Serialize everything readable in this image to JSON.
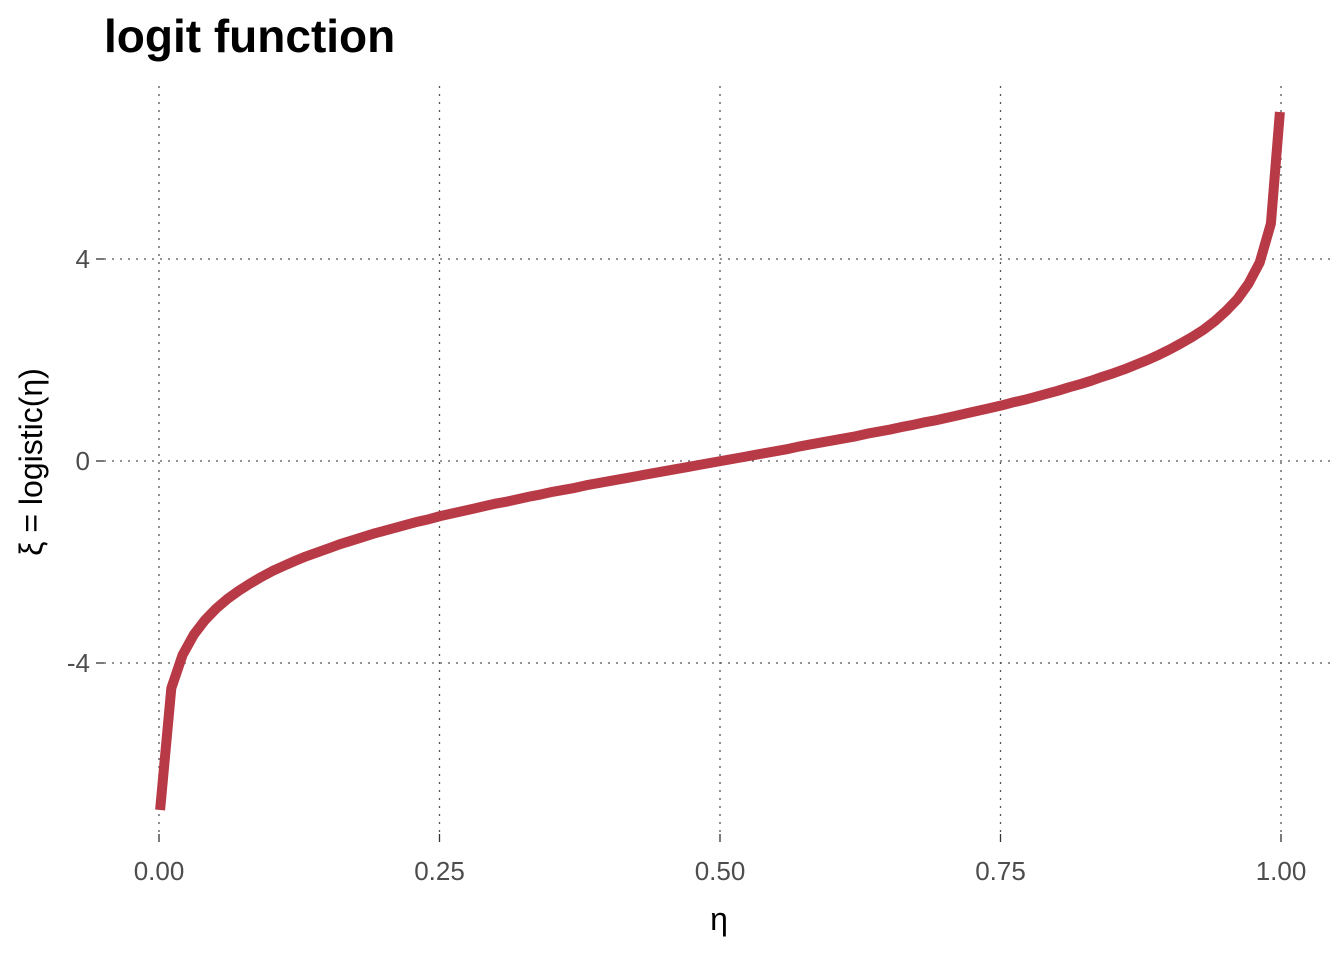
{
  "chart_data": {
    "type": "line",
    "title": "logit function",
    "xlabel": "η",
    "ylabel": "ξ = logistic(η)",
    "xlim": [
      0,
      1
    ],
    "ylim": [
      -6.9,
      6.9
    ],
    "xticks": [
      0,
      0.25,
      0.5,
      0.75,
      1
    ],
    "xtick_labels": [
      "0.00",
      "0.25",
      "0.50",
      "0.75",
      "1.00"
    ],
    "yticks": [
      -4,
      0,
      4
    ],
    "ytick_labels": [
      "-4",
      "0",
      "4"
    ],
    "grid": true,
    "series": [
      {
        "color": "#b83a46",
        "x": [
          0.001,
          0.011,
          0.021,
          0.031,
          0.041,
          0.051,
          0.061,
          0.071,
          0.081,
          0.091,
          0.101,
          0.111,
          0.121,
          0.131,
          0.141,
          0.151,
          0.161,
          0.171,
          0.181,
          0.191,
          0.201,
          0.211,
          0.221,
          0.231,
          0.241,
          0.251,
          0.261,
          0.271,
          0.281,
          0.291,
          0.301,
          0.311,
          0.321,
          0.331,
          0.341,
          0.351,
          0.361,
          0.371,
          0.381,
          0.391,
          0.401,
          0.411,
          0.421,
          0.431,
          0.441,
          0.451,
          0.461,
          0.471,
          0.481,
          0.491,
          0.501,
          0.511,
          0.521,
          0.531,
          0.541,
          0.551,
          0.561,
          0.571,
          0.581,
          0.591,
          0.601,
          0.611,
          0.621,
          0.631,
          0.641,
          0.651,
          0.661,
          0.671,
          0.681,
          0.691,
          0.701,
          0.711,
          0.721,
          0.731,
          0.741,
          0.751,
          0.761,
          0.771,
          0.781,
          0.791,
          0.801,
          0.811,
          0.821,
          0.831,
          0.841,
          0.851,
          0.861,
          0.871,
          0.881,
          0.891,
          0.901,
          0.911,
          0.921,
          0.931,
          0.941,
          0.951,
          0.961,
          0.971,
          0.981,
          0.991,
          0.999
        ],
        "y": [
          -6.91,
          -4.5,
          -3.84,
          -3.44,
          -3.15,
          -2.92,
          -2.73,
          -2.57,
          -2.43,
          -2.3,
          -2.18,
          -2.08,
          -1.98,
          -1.89,
          -1.81,
          -1.73,
          -1.65,
          -1.58,
          -1.51,
          -1.44,
          -1.38,
          -1.32,
          -1.26,
          -1.2,
          -1.15,
          -1.09,
          -1.04,
          -0.99,
          -0.94,
          -0.89,
          -0.84,
          -0.8,
          -0.75,
          -0.7,
          -0.66,
          -0.61,
          -0.57,
          -0.53,
          -0.48,
          -0.44,
          -0.4,
          -0.36,
          -0.32,
          -0.28,
          -0.24,
          -0.2,
          -0.16,
          -0.12,
          -0.08,
          -0.04,
          0.0,
          0.04,
          0.08,
          0.12,
          0.16,
          0.2,
          0.24,
          0.29,
          0.33,
          0.37,
          0.41,
          0.45,
          0.49,
          0.54,
          0.58,
          0.62,
          0.67,
          0.71,
          0.76,
          0.8,
          0.85,
          0.9,
          0.95,
          1.0,
          1.05,
          1.1,
          1.16,
          1.21,
          1.27,
          1.33,
          1.39,
          1.46,
          1.52,
          1.59,
          1.67,
          1.74,
          1.82,
          1.91,
          2.0,
          2.1,
          2.21,
          2.33,
          2.46,
          2.6,
          2.77,
          2.97,
          3.2,
          3.51,
          3.93,
          4.7,
          6.91
        ]
      }
    ]
  }
}
